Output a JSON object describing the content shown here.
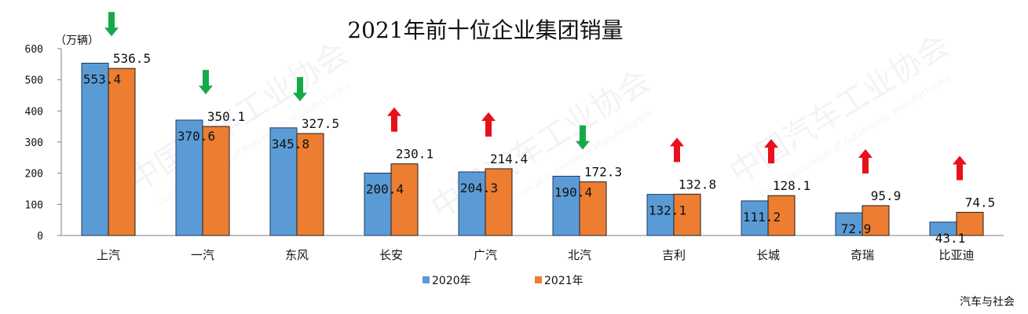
{
  "chart_data": {
    "type": "bar",
    "title": "2021年前十位企业集团销量",
    "unit_label": "（万辆）",
    "categories": [
      "上汽",
      "一汽",
      "东风",
      "长安",
      "广汽",
      "北汽",
      "吉利",
      "长城",
      "奇瑞",
      "比亚迪"
    ],
    "series": [
      {
        "name": "2020年",
        "color": "#5b9bd5",
        "values": [
          553.4,
          370.6,
          345.8,
          200.4,
          204.3,
          190.4,
          132.1,
          111.2,
          72.9,
          43.1
        ]
      },
      {
        "name": "2021年",
        "color": "#ed7d31",
        "values": [
          536.5,
          350.1,
          327.5,
          230.1,
          214.4,
          172.3,
          132.8,
          128.1,
          95.9,
          74.5
        ]
      }
    ],
    "value_labels": [
      [
        "553.4",
        "370.6",
        "345.8",
        "200.4",
        "204.3",
        "190.4",
        "132.1",
        "111.2",
        "72.9",
        "43.1"
      ],
      [
        "536.5",
        "350.1",
        "327.5",
        "230.1",
        "214.4",
        "172.3",
        "132.8",
        "128.1",
        "95.9",
        "74.5"
      ]
    ],
    "y_ticks": [
      "0",
      "100",
      "200",
      "300",
      "400",
      "500",
      "600"
    ],
    "ylim": [
      0,
      600
    ],
    "trend_arrows": [
      "down",
      "down",
      "down",
      "up",
      "up",
      "down",
      "up",
      "up",
      "up",
      "up"
    ],
    "arrow_colors": {
      "up": "#e8101a",
      "down": "#16a94a"
    },
    "legend_position": "bottom",
    "grid": false
  },
  "watermark": {
    "text": "中国汽车工业协会",
    "subtext": "China Association of Automobile Manufacturers"
  },
  "source": "汽车与社会"
}
